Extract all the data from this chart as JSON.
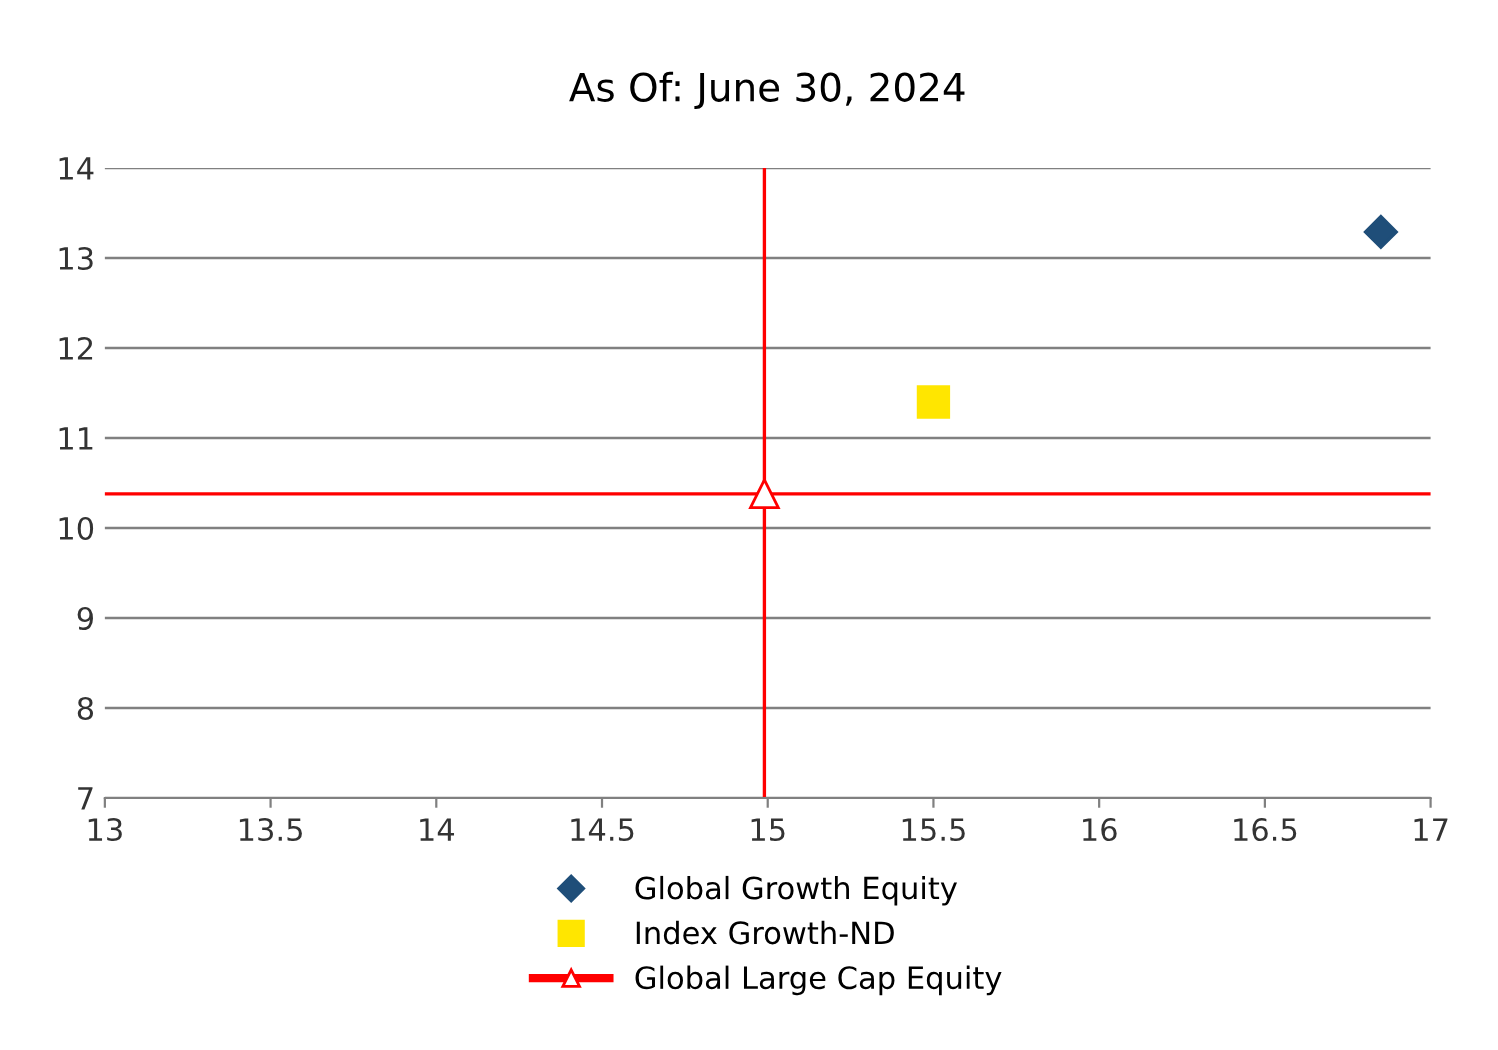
{
  "chart_data": {
    "type": "scatter",
    "title": "As Of: June 30, 2024",
    "series": [
      {
        "name": "Global Growth Equity",
        "marker": "diamond",
        "color": "#1f4e79",
        "x": [
          16.85
        ],
        "values": [
          13.29
        ]
      },
      {
        "name": "Index Growth-ND",
        "marker": "square",
        "color": "#ffe600",
        "x": [
          15.5
        ],
        "values": [
          11.4
        ]
      },
      {
        "name": "Global Large Cap Equity",
        "type": "line",
        "marker": "triangle",
        "color": "#ff0000",
        "x": [
          14.99
        ],
        "values": [
          10.38
        ]
      }
    ],
    "ref_lines": [
      {
        "axis": "x",
        "value": 14.99,
        "color": "#ff0000"
      },
      {
        "axis": "y",
        "value": 10.38,
        "color": "#ff0000"
      }
    ],
    "xlim": [
      13,
      17
    ],
    "xticks": [
      13,
      13.5,
      14,
      14.5,
      15,
      15.5,
      16,
      16.5,
      17
    ],
    "ylim": [
      7,
      14
    ],
    "yticks": [
      7,
      8,
      9,
      10,
      11,
      12,
      13,
      14
    ],
    "grid": "y",
    "legend": "bottom"
  }
}
